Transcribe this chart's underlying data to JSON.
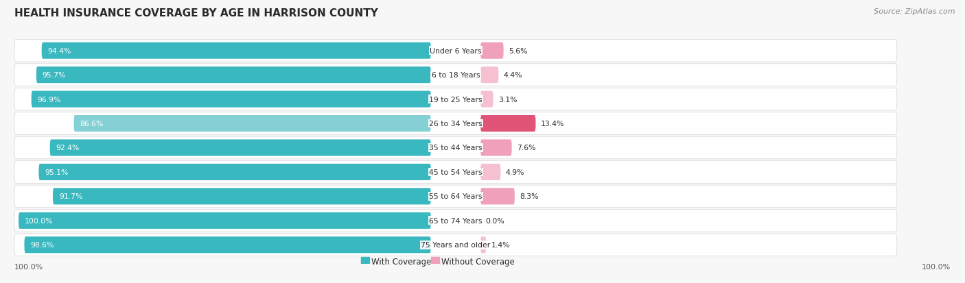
{
  "title": "HEALTH INSURANCE COVERAGE BY AGE IN HARRISON COUNTY",
  "source": "Source: ZipAtlas.com",
  "categories": [
    "Under 6 Years",
    "6 to 18 Years",
    "19 to 25 Years",
    "26 to 34 Years",
    "35 to 44 Years",
    "45 to 54 Years",
    "55 to 64 Years",
    "65 to 74 Years",
    "75 Years and older"
  ],
  "with_coverage": [
    94.4,
    95.7,
    96.9,
    86.6,
    92.4,
    95.1,
    91.7,
    100.0,
    98.6
  ],
  "without_coverage": [
    5.6,
    4.4,
    3.1,
    13.4,
    7.6,
    4.9,
    8.3,
    0.0,
    1.4
  ],
  "color_with_normal": "#3ab8c0",
  "color_with_low": "#85d0d5",
  "color_without_high": "#e05577",
  "color_without_low": "#f0a0bb",
  "color_without_very_low": "#f5c0d0",
  "row_bg_color": "#f0f0f0",
  "title_color": "#2a2a2a",
  "label_color": "#2a2a2a",
  "source_color": "#888888",
  "axis_label_color": "#555555",
  "legend_with_color": "#3ab8c0",
  "legend_without_color": "#f0a0bb"
}
